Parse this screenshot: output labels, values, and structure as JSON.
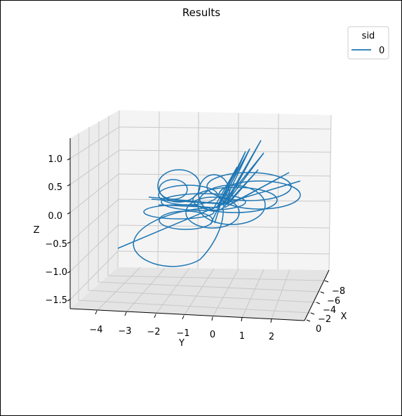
{
  "chart_data": {
    "type": "line",
    "projection": "3d",
    "title": "Results",
    "xlabel": "X",
    "ylabel": "Y",
    "zlabel": "Z",
    "x_ticks": [
      "−8",
      "−6",
      "−4",
      "−2",
      "0"
    ],
    "y_ticks": [
      "−4",
      "−3",
      "−2",
      "−1",
      "0",
      "1",
      "2"
    ],
    "z_ticks": [
      "1.0",
      "0.5",
      "0.0",
      "−0.5",
      "−1.0",
      "−1.5"
    ],
    "grid": true,
    "legend": {
      "title": "sid",
      "placement": "top-right",
      "entries": [
        "0"
      ]
    },
    "series": [
      {
        "name": "0",
        "color": "#1f77b4"
      }
    ]
  },
  "colors": {
    "series_line": "#1f77b4",
    "grid": "#b0b0b0",
    "pane": "#f2f2f2"
  }
}
